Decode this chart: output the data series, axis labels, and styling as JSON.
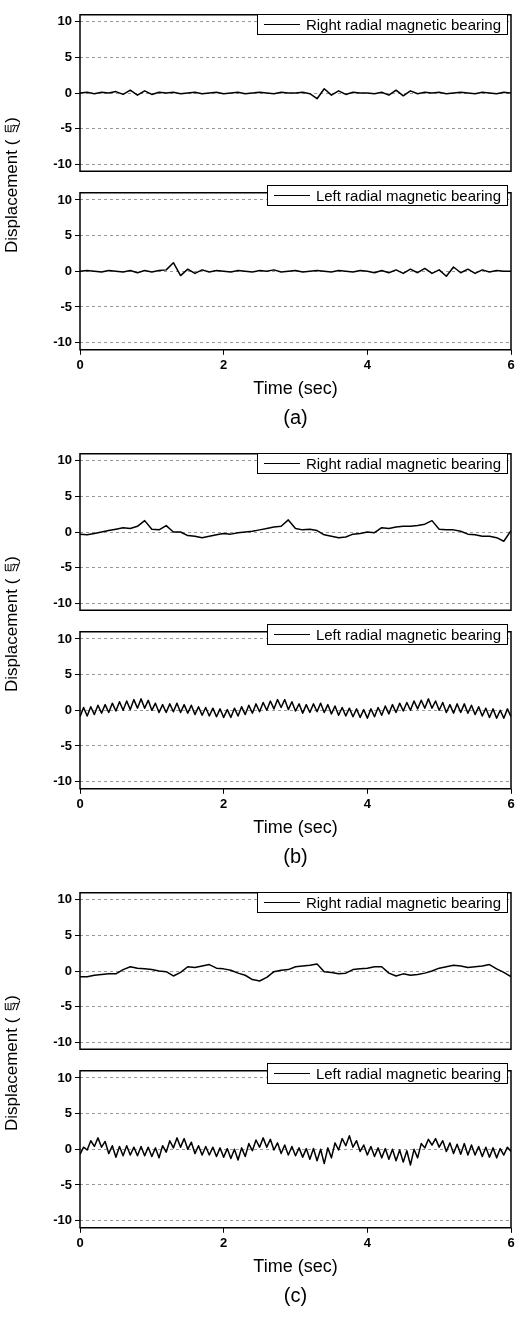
{
  "chart_data": [
    {
      "type": "line",
      "ylabel": "Displacement (㎛)",
      "x": [
        0,
        0.1,
        0.2,
        0.3,
        0.4,
        0.5,
        0.6,
        0.7,
        0.8,
        0.9,
        1,
        1.1,
        1.2,
        1.3,
        1.4,
        1.5,
        1.6,
        1.7,
        1.8,
        1.9,
        2,
        2.1,
        2.2,
        2.3,
        2.4,
        2.5,
        2.6,
        2.7,
        2.8,
        2.9,
        3,
        3.1,
        3.2,
        3.3,
        3.4,
        3.5,
        3.6,
        3.7,
        3.8,
        3.9,
        4,
        4.1,
        4.2,
        4.3,
        4.4,
        4.5,
        4.6,
        4.7,
        4.8,
        4.9,
        5,
        5.1,
        5.2,
        5.3,
        5.4,
        5.5,
        5.6,
        5.7,
        5.8,
        5.9,
        6
      ],
      "series": [
        {
          "name": "Right radial magnetic bearing",
          "color": "#000000",
          "values": [
            0,
            0.1,
            -0.1,
            0.1,
            0,
            0.2,
            -0.2,
            0.4,
            -0.3,
            0.3,
            -0.2,
            0.1,
            0,
            0.1,
            -0.1,
            0,
            0.1,
            -0.1,
            0,
            0.1,
            -0.1,
            0,
            0.1,
            -0.1,
            0,
            0.1,
            0,
            -0.1,
            0.1,
            0,
            0,
            0.1,
            -0.1,
            -0.8,
            0.6,
            -0.3,
            0.3,
            -0.2,
            0.1,
            0,
            0,
            -0.1,
            0.1,
            -0.3,
            0.4,
            -0.4,
            0.3,
            -0.1,
            0.1,
            0,
            0.1,
            -0.1,
            0,
            0.1,
            0,
            -0.1,
            0.1,
            0,
            -0.1,
            0.1,
            0
          ]
        }
      ],
      "xlim": [
        0,
        6
      ],
      "xticks": [
        0,
        2,
        4,
        6
      ],
      "ylim": [
        -11,
        11
      ],
      "yticks": [
        -10,
        -5,
        0,
        5,
        10
      ],
      "grid": "y",
      "legend": "top right",
      "tick_labels": "y"
    },
    {
      "type": "line",
      "xlabel": "Time (sec)",
      "annotations": [
        "(a)"
      ],
      "x": [
        0,
        0.1,
        0.2,
        0.3,
        0.4,
        0.5,
        0.6,
        0.7,
        0.8,
        0.9,
        1,
        1.1,
        1.2,
        1.3,
        1.4,
        1.5,
        1.6,
        1.7,
        1.8,
        1.9,
        2,
        2.1,
        2.2,
        2.3,
        2.4,
        2.5,
        2.6,
        2.7,
        2.8,
        2.9,
        3,
        3.1,
        3.2,
        3.3,
        3.4,
        3.5,
        3.6,
        3.7,
        3.8,
        3.9,
        4,
        4.1,
        4.2,
        4.3,
        4.4,
        4.5,
        4.6,
        4.7,
        4.8,
        4.9,
        5,
        5.1,
        5.2,
        5.3,
        5.4,
        5.5,
        5.6,
        5.7,
        5.8,
        5.9,
        6
      ],
      "series": [
        {
          "name": "Left radial magnetic bearing",
          "color": "#000000",
          "values": [
            0,
            0.1,
            0,
            -0.1,
            0.1,
            0,
            -0.1,
            0.1,
            -0.2,
            0.1,
            -0.1,
            0.1,
            0.2,
            1.2,
            -0.6,
            0.3,
            -0.3,
            0.2,
            -0.1,
            0.1,
            0,
            -0.1,
            0.1,
            0,
            -0.1,
            0.1,
            0,
            0.2,
            -0.1,
            0,
            0.1,
            -0.1,
            0,
            0.1,
            0,
            -0.1,
            0.1,
            0,
            -0.1,
            0.1,
            0,
            -0.2,
            0.1,
            -0.2,
            0.2,
            -0.3,
            0.3,
            -0.2,
            0.4,
            -0.3,
            0.2,
            -0.7,
            0.6,
            -0.2,
            0.3,
            -0.3,
            0.2,
            -0.1,
            0.1,
            0,
            0
          ]
        }
      ],
      "xlim": [
        0,
        6
      ],
      "xticks": [
        0,
        2,
        4,
        6
      ],
      "ylim": [
        -11,
        11
      ],
      "yticks": [
        -10,
        -5,
        0,
        5,
        10
      ],
      "grid": "y",
      "legend": "top right"
    },
    {
      "type": "line",
      "ylabel": "Displacement (㎛)",
      "x": [
        0,
        0.1,
        0.2,
        0.3,
        0.4,
        0.5,
        0.6,
        0.7,
        0.8,
        0.9,
        1,
        1.1,
        1.2,
        1.3,
        1.4,
        1.5,
        1.6,
        1.7,
        1.8,
        1.9,
        2,
        2.1,
        2.2,
        2.3,
        2.4,
        2.5,
        2.6,
        2.7,
        2.8,
        2.9,
        3,
        3.1,
        3.2,
        3.3,
        3.4,
        3.5,
        3.6,
        3.7,
        3.8,
        3.9,
        4,
        4.1,
        4.2,
        4.3,
        4.4,
        4.5,
        4.6,
        4.7,
        4.8,
        4.9,
        5,
        5.1,
        5.2,
        5.3,
        5.4,
        5.5,
        5.6,
        5.7,
        5.8,
        5.9,
        6
      ],
      "series": [
        {
          "name": "Right radial magnetic bearing",
          "color": "#000000",
          "values": [
            -0.3,
            -0.4,
            -0.2,
            0,
            0.2,
            0.4,
            0.6,
            0.5,
            0.8,
            1.6,
            0.4,
            0.3,
            0.9,
            0,
            0,
            -0.5,
            -0.6,
            -0.8,
            -0.6,
            -0.4,
            -0.2,
            -0.3,
            -0.1,
            0,
            0.1,
            0.3,
            0.5,
            0.7,
            0.8,
            1.7,
            0.5,
            0.3,
            0.4,
            0.2,
            -0.4,
            -0.6,
            -0.8,
            -0.7,
            -0.3,
            -0.2,
            0,
            -0.1,
            0.6,
            0.5,
            0.7,
            0.8,
            0.8,
            0.9,
            1.1,
            1.6,
            0.4,
            0.3,
            0.3,
            0.1,
            -0.3,
            -0.4,
            -0.6,
            -0.6,
            -0.8,
            -1.3,
            0.2
          ]
        }
      ],
      "xlim": [
        0,
        6
      ],
      "xticks": [
        0,
        2,
        4,
        6
      ],
      "ylim": [
        -11,
        11
      ],
      "yticks": [
        -10,
        -5,
        0,
        5,
        10
      ],
      "grid": "y",
      "legend": "top right",
      "tick_labels": "y"
    },
    {
      "type": "line",
      "xlabel": "Time (sec)",
      "annotations": [
        "(b)"
      ],
      "x": [
        0,
        0.05,
        0.1,
        0.15,
        0.2,
        0.25,
        0.3,
        0.35,
        0.4,
        0.45,
        0.5,
        0.55,
        0.6,
        0.65,
        0.7,
        0.75,
        0.8,
        0.85,
        0.9,
        0.95,
        1,
        1.05,
        1.1,
        1.15,
        1.2,
        1.25,
        1.3,
        1.35,
        1.4,
        1.45,
        1.5,
        1.55,
        1.6,
        1.65,
        1.7,
        1.75,
        1.8,
        1.85,
        1.9,
        1.95,
        2,
        2.05,
        2.1,
        2.15,
        2.2,
        2.25,
        2.3,
        2.35,
        2.4,
        2.45,
        2.5,
        2.55,
        2.6,
        2.65,
        2.7,
        2.75,
        2.8,
        2.85,
        2.9,
        2.95,
        3,
        3.05,
        3.1,
        3.15,
        3.2,
        3.25,
        3.3,
        3.35,
        3.4,
        3.45,
        3.5,
        3.55,
        3.6,
        3.65,
        3.7,
        3.75,
        3.8,
        3.85,
        3.9,
        3.95,
        4,
        4.05,
        4.1,
        4.15,
        4.2,
        4.25,
        4.3,
        4.35,
        4.4,
        4.45,
        4.5,
        4.55,
        4.6,
        4.65,
        4.7,
        4.75,
        4.8,
        4.85,
        4.9,
        4.95,
        5,
        5.05,
        5.1,
        5.15,
        5.2,
        5.25,
        5.3,
        5.35,
        5.4,
        5.45,
        5.5,
        5.55,
        5.6,
        5.65,
        5.7,
        5.75,
        5.8,
        5.85,
        5.9,
        5.95,
        6
      ],
      "series": [
        {
          "name": "Left radial magnetic bearing",
          "color": "#000000",
          "values": [
            -0.9,
            0.4,
            -0.8,
            0.5,
            -0.6,
            0.7,
            -0.4,
            0.8,
            -0.3,
            1.0,
            -0.1,
            1.2,
            0,
            1.3,
            0.1,
            1.5,
            0.3,
            1.6,
            0.3,
            1.4,
            0,
            1.0,
            -0.3,
            0.8,
            -0.3,
            0.9,
            -0.2,
            1.0,
            -0.3,
            0.8,
            -0.4,
            0.7,
            -0.6,
            0.5,
            -0.7,
            0.4,
            -0.8,
            0.3,
            -0.9,
            0.2,
            -1.0,
            0.1,
            -1.0,
            0.3,
            -0.8,
            0.5,
            -0.6,
            0.7,
            -0.4,
            0.9,
            -0.2,
            1.1,
            0,
            1.3,
            0.2,
            1.5,
            0.4,
            1.5,
            0.1,
            1.2,
            -0.1,
            0.9,
            -0.4,
            0.8,
            -0.3,
            0.9,
            -0.2,
            1.0,
            -0.3,
            0.8,
            -0.5,
            0.6,
            -0.7,
            0.4,
            -0.8,
            0.3,
            -0.9,
            0.2,
            -1.0,
            0.1,
            -1.1,
            0.2,
            -0.9,
            0.4,
            -0.7,
            0.6,
            -0.5,
            0.8,
            -0.3,
            1.0,
            -0.1,
            1.1,
            0,
            1.3,
            0.2,
            1.4,
            0.3,
            1.6,
            0.3,
            1.3,
            0,
            1.1,
            -0.3,
            0.8,
            -0.4,
            0.9,
            -0.3,
            0.9,
            -0.4,
            0.7,
            -0.6,
            0.5,
            -0.8,
            0.3,
            -1.0,
            0.2,
            -1.1,
            0,
            -1.1,
            0.2,
            -0.9
          ]
        }
      ],
      "xlim": [
        0,
        6
      ],
      "xticks": [
        0,
        2,
        4,
        6
      ],
      "ylim": [
        -11,
        11
      ],
      "yticks": [
        -10,
        -5,
        0,
        5,
        10
      ],
      "grid": "y",
      "legend": "top right"
    },
    {
      "type": "line",
      "ylabel": "Displacement (㎛)",
      "x": [
        0,
        0.1,
        0.2,
        0.3,
        0.4,
        0.5,
        0.6,
        0.7,
        0.8,
        0.9,
        1,
        1.1,
        1.2,
        1.3,
        1.4,
        1.5,
        1.6,
        1.7,
        1.8,
        1.9,
        2,
        2.1,
        2.2,
        2.3,
        2.4,
        2.5,
        2.6,
        2.7,
        2.8,
        2.9,
        3,
        3.1,
        3.2,
        3.3,
        3.4,
        3.5,
        3.6,
        3.7,
        3.8,
        3.9,
        4,
        4.1,
        4.2,
        4.3,
        4.4,
        4.5,
        4.6,
        4.7,
        4.8,
        4.9,
        5,
        5.1,
        5.2,
        5.3,
        5.4,
        5.5,
        5.6,
        5.7,
        5.8,
        5.9,
        6
      ],
      "series": [
        {
          "name": "Right radial magnetic bearing",
          "color": "#000000",
          "values": [
            -0.8,
            -0.8,
            -0.6,
            -0.5,
            -0.4,
            -0.4,
            0.2,
            0.6,
            0.4,
            0.3,
            0.2,
            0,
            -0.1,
            -0.7,
            -0.2,
            0.6,
            0.5,
            0.7,
            0.9,
            0.4,
            0.3,
            0.1,
            -0.3,
            -0.6,
            -1.2,
            -1.4,
            -0.9,
            -0.1,
            0.1,
            0.2,
            0.6,
            0.7,
            0.8,
            1.0,
            -0.1,
            -0.2,
            -0.4,
            -0.3,
            0.2,
            0.3,
            0.4,
            0.6,
            0.6,
            -0.3,
            -0.7,
            -0.4,
            -0.6,
            -0.5,
            -0.3,
            0,
            0.4,
            0.6,
            0.8,
            0.7,
            0.5,
            0.6,
            0.7,
            0.9,
            0.3,
            -0.2,
            -0.8
          ]
        }
      ],
      "xlim": [
        0,
        6
      ],
      "xticks": [
        0,
        2,
        4,
        6
      ],
      "ylim": [
        -11,
        11
      ],
      "yticks": [
        -10,
        -5,
        0,
        5,
        10
      ],
      "grid": "y",
      "legend": "top right",
      "tick_labels": "y"
    },
    {
      "type": "line",
      "xlabel": "Time (sec)",
      "annotations": [
        "(c)"
      ],
      "x": [
        0,
        0.05,
        0.1,
        0.15,
        0.2,
        0.25,
        0.3,
        0.35,
        0.4,
        0.45,
        0.5,
        0.55,
        0.6,
        0.65,
        0.7,
        0.75,
        0.8,
        0.85,
        0.9,
        0.95,
        1,
        1.05,
        1.1,
        1.15,
        1.2,
        1.25,
        1.3,
        1.35,
        1.4,
        1.45,
        1.5,
        1.55,
        1.6,
        1.65,
        1.7,
        1.75,
        1.8,
        1.85,
        1.9,
        1.95,
        2,
        2.05,
        2.1,
        2.15,
        2.2,
        2.25,
        2.3,
        2.35,
        2.4,
        2.45,
        2.5,
        2.55,
        2.6,
        2.65,
        2.7,
        2.75,
        2.8,
        2.85,
        2.9,
        2.95,
        3,
        3.05,
        3.1,
        3.15,
        3.2,
        3.25,
        3.3,
        3.35,
        3.4,
        3.45,
        3.5,
        3.55,
        3.6,
        3.65,
        3.7,
        3.75,
        3.8,
        3.85,
        3.9,
        3.95,
        4,
        4.05,
        4.1,
        4.15,
        4.2,
        4.25,
        4.3,
        4.35,
        4.4,
        4.45,
        4.5,
        4.55,
        4.6,
        4.65,
        4.7,
        4.75,
        4.8,
        4.85,
        4.9,
        4.95,
        5,
        5.05,
        5.1,
        5.15,
        5.2,
        5.25,
        5.3,
        5.35,
        5.4,
        5.45,
        5.5,
        5.55,
        5.6,
        5.65,
        5.7,
        5.75,
        5.8,
        5.85,
        5.9,
        5.95,
        6
      ],
      "series": [
        {
          "name": "Left radial magnetic bearing",
          "color": "#000000",
          "values": [
            -0.7,
            0.3,
            -0.1,
            1.2,
            0.4,
            1.6,
            0.3,
            1.1,
            -0.6,
            0.5,
            -1.1,
            0.4,
            -0.9,
            0.5,
            -0.8,
            0.3,
            -0.9,
            0.4,
            -0.9,
            0.3,
            -1.0,
            0.2,
            -1.2,
            0.5,
            -0.4,
            1.2,
            0.2,
            1.6,
            0.3,
            1.5,
            0,
            1.0,
            -0.6,
            0.5,
            -0.8,
            0.4,
            -0.8,
            0.3,
            -1.0,
            0.2,
            -1.1,
            0.1,
            -1.3,
            0,
            -1.5,
            0.2,
            -1.0,
            0.8,
            -0.2,
            1.3,
            0.3,
            1.6,
            0.3,
            1.4,
            -0.1,
            0.9,
            -0.6,
            0.6,
            -0.8,
            0.4,
            -0.9,
            0.2,
            -1.1,
            0.1,
            -1.4,
            0.1,
            -1.6,
            0,
            -2.0,
            0.2,
            -1.2,
            0.9,
            -0.1,
            1.5,
            0.5,
            1.9,
            0.3,
            1.2,
            -0.3,
            0.6,
            -0.8,
            0.4,
            -1.0,
            0.2,
            -1.2,
            0.1,
            -1.4,
            0,
            -1.6,
            -0.1,
            -1.8,
            -0.2,
            -2.2,
            0,
            -1.2,
            0.8,
            0.2,
            1.4,
            0.6,
            1.5,
            0.3,
            1.2,
            -0.3,
            0.9,
            -0.6,
            0.7,
            -0.7,
            0.8,
            -0.8,
            0.6,
            -0.8,
            0.4,
            -1.0,
            0.3,
            -1.1,
            0.2,
            -1.2,
            0.1,
            -0.8,
            0.3,
            -0.3
          ]
        }
      ],
      "xlim": [
        0,
        6
      ],
      "xticks": [
        0,
        2,
        4,
        6
      ],
      "ylim": [
        -11,
        11
      ],
      "yticks": [
        -10,
        -5,
        0,
        5,
        10
      ],
      "grid": "y",
      "legend": "top right"
    }
  ]
}
